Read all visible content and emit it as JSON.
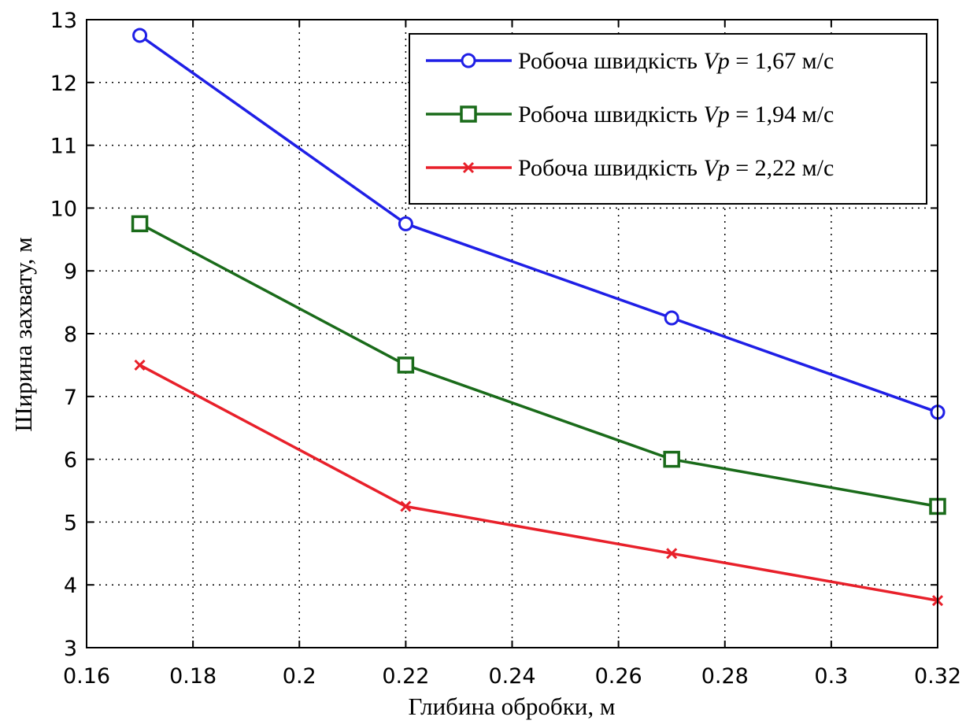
{
  "chart_data": {
    "type": "line",
    "xlabel": "Глибина обробки, м",
    "ylabel": "Ширина захвату, м",
    "xlim": [
      0.16,
      0.32
    ],
    "ylim": [
      3,
      13
    ],
    "xticks": [
      "0.16",
      "0.18",
      "0.2",
      "0.22",
      "0.24",
      "0.26",
      "0.28",
      "0.3",
      "0.32"
    ],
    "yticks": [
      "3",
      "4",
      "5",
      "6",
      "7",
      "8",
      "9",
      "10",
      "11",
      "12",
      "13"
    ],
    "grid": true,
    "legend_position": "top-right",
    "x": [
      0.17,
      0.22,
      0.27,
      0.32
    ],
    "series": [
      {
        "name": "Робоча швидкість Vp = 1,67 м/с",
        "legend_prefix": "Робоча швидкість ",
        "legend_var": "Vp",
        "legend_suffix": " = 1,67 м/с",
        "color": "#1f1fe6",
        "marker": "circle",
        "values": [
          12.75,
          9.75,
          8.25,
          6.75
        ]
      },
      {
        "name": "Робоча швидкість Vp = 1,94 м/с",
        "legend_prefix": "Робоча швидкість ",
        "legend_var": "Vp",
        "legend_suffix": " = 1,94 м/с",
        "color": "#1a6b1a",
        "marker": "square",
        "values": [
          9.75,
          7.5,
          6.0,
          5.25
        ]
      },
      {
        "name": "Робоча швидкість Vp = 2,22 м/с",
        "legend_prefix": "Робоча швидкість ",
        "legend_var": "Vp",
        "legend_suffix": " = 2,22 м/с",
        "color": "#e8202a",
        "marker": "x",
        "values": [
          7.5,
          5.25,
          4.5,
          3.75
        ]
      }
    ]
  }
}
